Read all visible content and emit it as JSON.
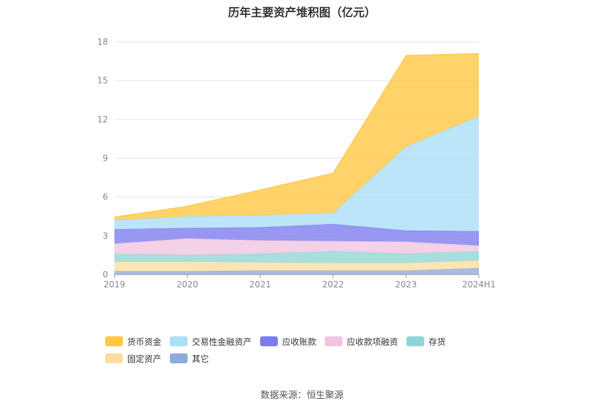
{
  "chart_data": {
    "type": "area",
    "stacked": true,
    "title": "历年主要资产堆积图（亿元）",
    "xlabel": "",
    "ylabel": "",
    "categories": [
      "2019",
      "2020",
      "2021",
      "2022",
      "2023",
      "2024H1"
    ],
    "ylim": [
      0,
      18
    ],
    "yticks": [
      0,
      3,
      6,
      9,
      12,
      15,
      18
    ],
    "grid": true,
    "legend_position": "bottom",
    "series": [
      {
        "name": "其它",
        "color": "#8FAADC",
        "values": [
          0.25,
          0.25,
          0.3,
          0.3,
          0.3,
          0.5
        ]
      },
      {
        "name": "固定资产",
        "color": "#FCDDA0",
        "values": [
          0.75,
          0.75,
          0.65,
          0.6,
          0.6,
          0.6
        ]
      },
      {
        "name": "存货",
        "color": "#8ED6D6",
        "values": [
          0.6,
          0.5,
          0.65,
          0.9,
          0.7,
          0.7
        ]
      },
      {
        "name": "应收款项融资",
        "color": "#F0C4E0",
        "values": [
          0.8,
          1.3,
          1.05,
          0.8,
          0.95,
          0.45
        ]
      },
      {
        "name": "应收账款",
        "color": "#7B7BEE",
        "values": [
          1.1,
          0.8,
          1.0,
          1.3,
          0.85,
          1.1
        ]
      },
      {
        "name": "交易性金融资产",
        "color": "#ABDEF7",
        "values": [
          0.7,
          0.9,
          0.95,
          0.85,
          6.5,
          8.9
        ]
      },
      {
        "name": "货币资金",
        "color": "#FFC640",
        "values": [
          0.25,
          0.8,
          1.95,
          3.1,
          7.05,
          4.85
        ]
      }
    ]
  },
  "legend_order": [
    "货币资金",
    "交易性金融资产",
    "应收账款",
    "应收款项融资",
    "存货",
    "固定资产",
    "其它"
  ],
  "source_text": "数据来源：恒生聚源"
}
